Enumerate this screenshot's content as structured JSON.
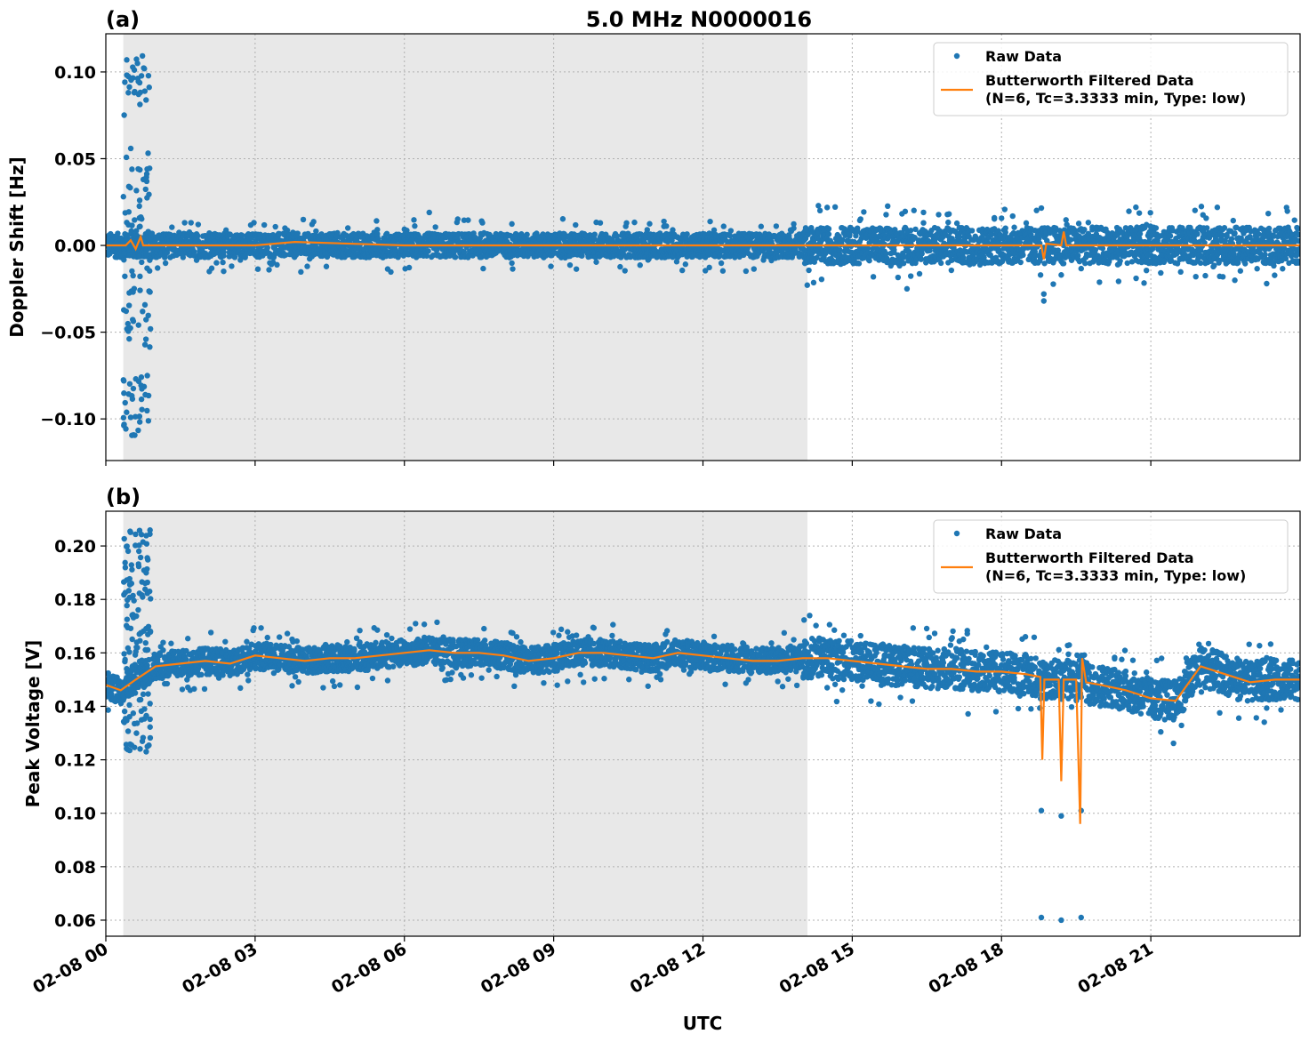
{
  "figure": {
    "title": "5.0 MHz N0000016",
    "xlabel": "UTC"
  },
  "colors": {
    "raw": "#1f77b4",
    "filtered": "#ff7f0e",
    "night_shade": "#e8e8e8",
    "grid": "#b0b0b0"
  },
  "chart_data": [
    {
      "type": "scatter",
      "panel_label": "(a)",
      "title": "5.0 MHz N0000016",
      "ylabel": "Doppler Shift [Hz]",
      "xlabel": "",
      "xlim": [
        0,
        24
      ],
      "ylim": [
        -0.124,
        0.122
      ],
      "yticks": [
        -0.1,
        -0.05,
        0.0,
        0.05,
        0.1
      ],
      "ytick_labels": [
        "−0.10",
        "−0.05",
        "0.00",
        "0.05",
        "0.10"
      ],
      "xticks": [
        0,
        3,
        6,
        9,
        12,
        15,
        18,
        21
      ],
      "xtick_labels": [
        "",
        "",
        "",
        "",
        "",
        "",
        "",
        ""
      ],
      "grid": true,
      "legend_placement": "top-right",
      "shaded_interval_hours": [
        0.35,
        14.1
      ],
      "series": [
        {
          "name": "Raw Data",
          "kind": "points",
          "baseline": 0.0,
          "scatter_amplitude": 0.007,
          "burst": {
            "start_hours": 0.35,
            "end_hours": 0.9,
            "max_abs": 0.11
          }
        },
        {
          "name": "Butterworth Filtered Data\n(N=6, Tc=3.3333 min, Type: low)",
          "kind": "line",
          "points": [
            [
              0,
              0.0
            ],
            [
              0.4,
              0.0
            ],
            [
              0.5,
              0.003
            ],
            [
              0.6,
              -0.002
            ],
            [
              0.7,
              0.005
            ],
            [
              0.75,
              0.0
            ],
            [
              3,
              0.0
            ],
            [
              3.8,
              0.002
            ],
            [
              6,
              0.0
            ],
            [
              9,
              0.0
            ],
            [
              12,
              0.0
            ],
            [
              14,
              0.0
            ],
            [
              16,
              0.0
            ],
            [
              18,
              0.0
            ],
            [
              18.8,
              0.0
            ],
            [
              18.85,
              -0.008
            ],
            [
              18.9,
              0.001
            ],
            [
              19.2,
              0.0
            ],
            [
              19.25,
              0.008
            ],
            [
              19.3,
              0.0
            ],
            [
              21,
              0.0
            ],
            [
              24,
              0.0
            ]
          ]
        }
      ]
    },
    {
      "type": "scatter",
      "panel_label": "(b)",
      "title": "",
      "ylabel": "Peak Voltage [V]",
      "xlabel": "UTC",
      "xlim": [
        0,
        24
      ],
      "ylim": [
        0.054,
        0.213
      ],
      "yticks": [
        0.06,
        0.08,
        0.1,
        0.12,
        0.14,
        0.16,
        0.18,
        0.2
      ],
      "ytick_labels": [
        "0.06",
        "0.08",
        "0.10",
        "0.12",
        "0.14",
        "0.16",
        "0.18",
        "0.20"
      ],
      "xticks": [
        0,
        3,
        6,
        9,
        12,
        15,
        18,
        21
      ],
      "xtick_labels": [
        "02-08 00",
        "02-08 03",
        "02-08 06",
        "02-08 09",
        "02-08 12",
        "02-08 15",
        "02-08 18",
        "02-08 21"
      ],
      "grid": true,
      "legend_placement": "top-right",
      "shaded_interval_hours": [
        0.35,
        14.1
      ],
      "series": [
        {
          "name": "Raw Data",
          "kind": "points",
          "scatter_amplitude": 0.005,
          "burst": {
            "start_hours": 0.35,
            "end_hours": 0.9,
            "min": 0.123,
            "max": 0.206
          },
          "outliers": [
            [
              18.8,
              0.101
            ],
            [
              19.2,
              0.099
            ],
            [
              19.6,
              0.101
            ],
            [
              18.8,
              0.061
            ],
            [
              19.2,
              0.06
            ],
            [
              19.6,
              0.061
            ]
          ]
        },
        {
          "name": "Butterworth Filtered Data\n(N=6, Tc=3.3333 min, Type: low)",
          "kind": "line",
          "points": [
            [
              0,
              0.148
            ],
            [
              0.3,
              0.146
            ],
            [
              0.6,
              0.15
            ],
            [
              1.0,
              0.155
            ],
            [
              1.5,
              0.156
            ],
            [
              2.0,
              0.157
            ],
            [
              2.5,
              0.156
            ],
            [
              3.0,
              0.159
            ],
            [
              3.5,
              0.158
            ],
            [
              4.0,
              0.157
            ],
            [
              4.5,
              0.158
            ],
            [
              5.0,
              0.158
            ],
            [
              5.5,
              0.159
            ],
            [
              6.0,
              0.16
            ],
            [
              6.5,
              0.161
            ],
            [
              7.0,
              0.16
            ],
            [
              7.5,
              0.16
            ],
            [
              8.0,
              0.159
            ],
            [
              8.5,
              0.157
            ],
            [
              9.0,
              0.158
            ],
            [
              9.5,
              0.16
            ],
            [
              10.0,
              0.16
            ],
            [
              10.5,
              0.159
            ],
            [
              11.0,
              0.158
            ],
            [
              11.5,
              0.16
            ],
            [
              12.0,
              0.159
            ],
            [
              12.5,
              0.158
            ],
            [
              13.0,
              0.157
            ],
            [
              13.5,
              0.157
            ],
            [
              14.0,
              0.158
            ],
            [
              14.5,
              0.158
            ],
            [
              15.0,
              0.157
            ],
            [
              15.5,
              0.156
            ],
            [
              16.0,
              0.155
            ],
            [
              16.5,
              0.154
            ],
            [
              17.0,
              0.154
            ],
            [
              17.5,
              0.153
            ],
            [
              18.0,
              0.153
            ],
            [
              18.5,
              0.152
            ],
            [
              18.78,
              0.151
            ],
            [
              18.82,
              0.12
            ],
            [
              18.86,
              0.15
            ],
            [
              19.15,
              0.15
            ],
            [
              19.2,
              0.112
            ],
            [
              19.25,
              0.15
            ],
            [
              19.5,
              0.15
            ],
            [
              19.58,
              0.096
            ],
            [
              19.62,
              0.158
            ],
            [
              19.7,
              0.149
            ],
            [
              20.0,
              0.148
            ],
            [
              20.5,
              0.146
            ],
            [
              21.0,
              0.143
            ],
            [
              21.5,
              0.142
            ],
            [
              22.0,
              0.155
            ],
            [
              22.5,
              0.152
            ],
            [
              23.0,
              0.149
            ],
            [
              23.5,
              0.15
            ],
            [
              24.0,
              0.15
            ]
          ]
        }
      ]
    }
  ]
}
